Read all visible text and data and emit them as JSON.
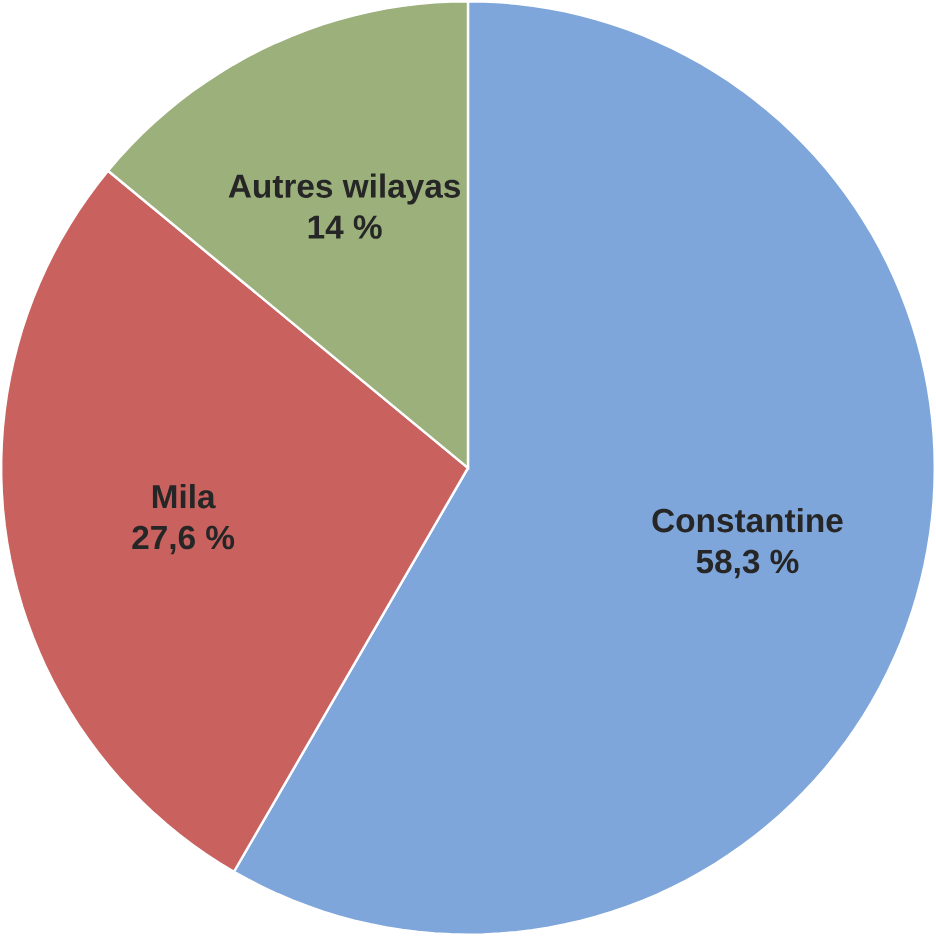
{
  "chart_data": {
    "type": "pie",
    "categories": [
      "Constantine",
      "Mila",
      "Autres wilayas"
    ],
    "values": [
      58.3,
      27.6,
      14
    ],
    "colors": [
      "#7ea6da",
      "#c9625f",
      "#9cb07c"
    ],
    "value_labels": [
      "58,3 %",
      "27,6 %",
      "14 %"
    ]
  }
}
